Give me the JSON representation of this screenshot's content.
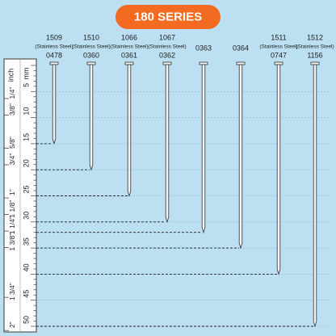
{
  "title": "180 SERIES",
  "ruler": {
    "mm_label": "mm",
    "inch_label": "inch",
    "mm_ticks": [
      5,
      10,
      15,
      20,
      25,
      30,
      35,
      40,
      45,
      50
    ],
    "inch_ticks": [
      {
        "value": 0.25,
        "label": "1/4\""
      },
      {
        "value": 0.375,
        "label": "3/8\""
      },
      {
        "value": 0.625,
        "label": "5/8\""
      },
      {
        "value": 0.75,
        "label": "3/4\""
      },
      {
        "value": 1,
        "label": "1\""
      },
      {
        "value": 1.125,
        "label": "1 1/8\""
      },
      {
        "value": 1.25,
        "label": "1 1/4\""
      },
      {
        "value": 1.375,
        "label": "1 3/8\""
      },
      {
        "value": 1.75,
        "label": "1 3/4\""
      },
      {
        "value": 2,
        "label": "2\""
      }
    ]
  },
  "nails": [
    {
      "top": "1509",
      "note": "(Stainless Steel)",
      "code": "0478",
      "length_mm": 15
    },
    {
      "top": "1510",
      "note": "(Stainless Steel)",
      "code": "0360",
      "length_mm": 20
    },
    {
      "top": "1066",
      "note": "(Stainless Steel)",
      "code": "0361",
      "length_mm": 25
    },
    {
      "top": "1067",
      "note": "(Stainless Steel)",
      "code": "0362",
      "length_mm": 30
    },
    {
      "code": "0363",
      "length_mm": 32
    },
    {
      "code": "0364",
      "length_mm": 35
    },
    {
      "top": "1511",
      "note": "(Stainless Steel)",
      "code": "0747",
      "length_mm": 40
    },
    {
      "top": "1512",
      "note": "(Stainless Steel)",
      "code": "1156",
      "length_mm": 50
    }
  ]
}
